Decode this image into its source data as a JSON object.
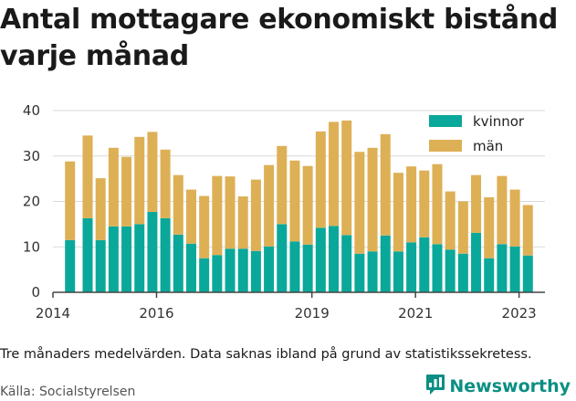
{
  "title": "Antal mottagare ekonomiskt bistånd varje månad",
  "note": "Tre månaders medelvärden. Data saknas ibland på grund av statistikssekretess.",
  "source": "Källa: Socialstyrelsen",
  "brand": {
    "name": "Newsworthy",
    "icon": "bar-chart-logo-icon"
  },
  "colors": {
    "kvinnor": "#0aa89a",
    "man": "#ddb056",
    "axis": "#444444",
    "grid": "#d9d9d9"
  },
  "chart_data": {
    "type": "bar",
    "stacked": true,
    "title": "Antal mottagare ekonomiskt bistånd varje månad",
    "xlabel": "",
    "ylabel": "",
    "ylim": [
      0,
      40
    ],
    "yticks": [
      0,
      10,
      20,
      30,
      40
    ],
    "xlim": [
      2014.0,
      2023.5
    ],
    "xticks": [
      "2014",
      "2016",
      "2019",
      "2021",
      "2023"
    ],
    "grid": "horizontal",
    "legend": "top-right",
    "x": [
      2014.33,
      2014.67,
      2014.92,
      2015.17,
      2015.42,
      2015.67,
      2015.92,
      2016.17,
      2016.42,
      2016.67,
      2016.92,
      2017.17,
      2017.42,
      2017.67,
      2017.92,
      2018.17,
      2018.42,
      2018.67,
      2018.92,
      2019.17,
      2019.42,
      2019.67,
      2019.92,
      2020.17,
      2020.42,
      2020.67,
      2020.92,
      2021.17,
      2021.42,
      2021.67,
      2021.92,
      2022.17,
      2022.42,
      2022.67,
      2022.92,
      2023.17
    ],
    "series": [
      {
        "name": "kvinnor",
        "values": [
          11.5,
          16.3,
          11.5,
          14.5,
          14.5,
          15.0,
          17.7,
          16.3,
          12.7,
          10.7,
          7.5,
          8.2,
          9.6,
          9.6,
          9.1,
          10.1,
          15.0,
          11.2,
          10.5,
          14.2,
          14.6,
          12.6,
          8.5,
          9.0,
          12.5,
          9.0,
          11.0,
          12.1,
          10.6,
          9.4,
          8.5,
          13.1,
          7.5,
          10.6,
          10.1,
          8.1
        ]
      },
      {
        "name": "män",
        "values": [
          17.3,
          18.2,
          13.6,
          17.3,
          15.3,
          19.2,
          17.6,
          15.1,
          13.1,
          11.9,
          13.7,
          17.4,
          15.9,
          11.5,
          15.7,
          17.9,
          17.2,
          17.8,
          17.3,
          21.2,
          22.9,
          25.2,
          22.4,
          22.8,
          22.3,
          17.3,
          16.7,
          14.7,
          17.6,
          12.8,
          11.5,
          12.7,
          13.4,
          15.0,
          12.5,
          11.1
        ]
      }
    ]
  }
}
